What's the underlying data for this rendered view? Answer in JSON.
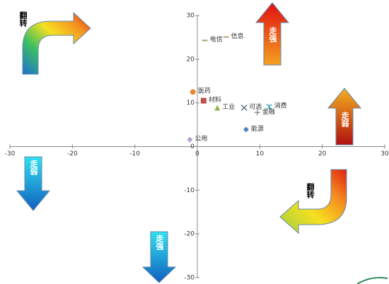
{
  "chart_data": {
    "type": "scatter",
    "xlim": [
      -30,
      30
    ],
    "ylim": [
      -30,
      30
    ],
    "xticks": [
      -30,
      -20,
      -10,
      0,
      10,
      20,
      30
    ],
    "yticks": [
      -30,
      -20,
      -10,
      0,
      10,
      20,
      30
    ],
    "series": [
      {
        "name": "电信",
        "color": "#a5a07a",
        "marker": "dash",
        "x": [
          1.2
        ],
        "values": [
          24.3
        ]
      },
      {
        "name": "信息",
        "color": "#c0a080",
        "marker": "dash",
        "x": [
          4.6
        ],
        "values": [
          25.1
        ]
      },
      {
        "name": "医药",
        "color": "#e8883a",
        "marker": "circle",
        "x": [
          -0.7
        ],
        "values": [
          12.5
        ]
      },
      {
        "name": "材料",
        "color": "#c0504d",
        "marker": "square",
        "x": [
          1.0
        ],
        "values": [
          10.5
        ]
      },
      {
        "name": "工业",
        "color": "#8fb04f",
        "marker": "triangle",
        "x": [
          3.2
        ],
        "values": [
          8.9
        ]
      },
      {
        "name": "可选",
        "color": "#4a5a7a",
        "marker": "x",
        "x": [
          7.5
        ],
        "values": [
          8.9
        ]
      },
      {
        "name": "消费",
        "color": "#4bacc6",
        "marker": "star",
        "x": [
          11.5
        ],
        "values": [
          9.1
        ]
      },
      {
        "name": "金融",
        "color": "#7f7f7f",
        "marker": "plus",
        "x": [
          9.6
        ],
        "values": [
          7.8
        ]
      },
      {
        "name": "能源",
        "color": "#4f81bd",
        "marker": "diamond",
        "x": [
          7.8
        ],
        "values": [
          3.9
        ]
      },
      {
        "name": "公用",
        "color": "#b3a2c7",
        "marker": "diamond",
        "x": [
          -1.2
        ],
        "values": [
          1.6
        ]
      }
    ],
    "annotations": [
      "翻转",
      "走强",
      "走弱",
      "走弱",
      "走强",
      "翻转"
    ]
  }
}
